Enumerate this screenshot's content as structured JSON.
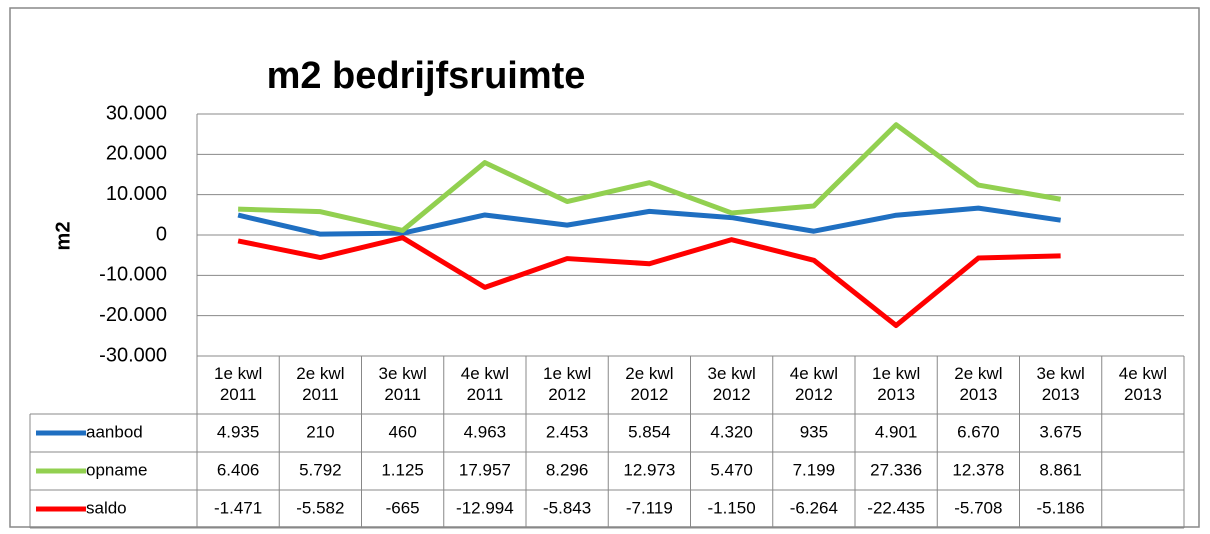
{
  "chart_data": {
    "type": "line",
    "title": "m2 bedrijfsruimte",
    "y_label": "m2",
    "categories": [
      "1e kwl 2011",
      "2e kwl 2011",
      "3e kwl 2011",
      "4e kwl 2011",
      "1e kwl 2012",
      "2e kwl 2012",
      "3e kwl 2012",
      "4e kwl 2012",
      "1e kwl 2013",
      "2e kwl 2013",
      "3e kwl 2013",
      "4e kwl 2013"
    ],
    "series": [
      {
        "name": "aanbod",
        "color": "#1f6fc1",
        "values": [
          4935,
          210,
          460,
          4963,
          2453,
          5854,
          4320,
          935,
          4901,
          6670,
          3675,
          null
        ],
        "value_labels": [
          "4.935",
          "210",
          "460",
          "4.963",
          "2.453",
          "5.854",
          "4.320",
          "935",
          "4.901",
          "6.670",
          "3.675",
          null
        ]
      },
      {
        "name": "opname",
        "color": "#92d050",
        "values": [
          6406,
          5792,
          1125,
          17957,
          8296,
          12973,
          5470,
          7199,
          27336,
          12378,
          8861,
          null
        ],
        "value_labels": [
          "6.406",
          "5.792",
          "1.125",
          "17.957",
          "8.296",
          "12.973",
          "5.470",
          "7.199",
          "27.336",
          "12.378",
          "8.861",
          null
        ]
      },
      {
        "name": "saldo",
        "color": "#ff0000",
        "values": [
          -1471,
          -5582,
          -665,
          -12994,
          -5843,
          -7119,
          -1150,
          -6264,
          -22435,
          -5708,
          -5186,
          null
        ],
        "value_labels": [
          "-1.471",
          "-5.582",
          "-665",
          "-12.994",
          "-5.843",
          "-7.119",
          "-1.150",
          "-6.264",
          "-22.435",
          "-5.708",
          "-5.186",
          null
        ]
      }
    ],
    "ylim": [
      -30000,
      30000
    ],
    "yticks": [
      {
        "value": -30000,
        "label": "-30.000"
      },
      {
        "value": -20000,
        "label": "-20.000"
      },
      {
        "value": -10000,
        "label": "-10.000"
      },
      0,
      {
        "value": 10000,
        "label": "10.000"
      },
      {
        "value": 20000,
        "label": "20.000"
      },
      {
        "value": 30000,
        "label": "30.000"
      }
    ],
    "grid": true
  }
}
